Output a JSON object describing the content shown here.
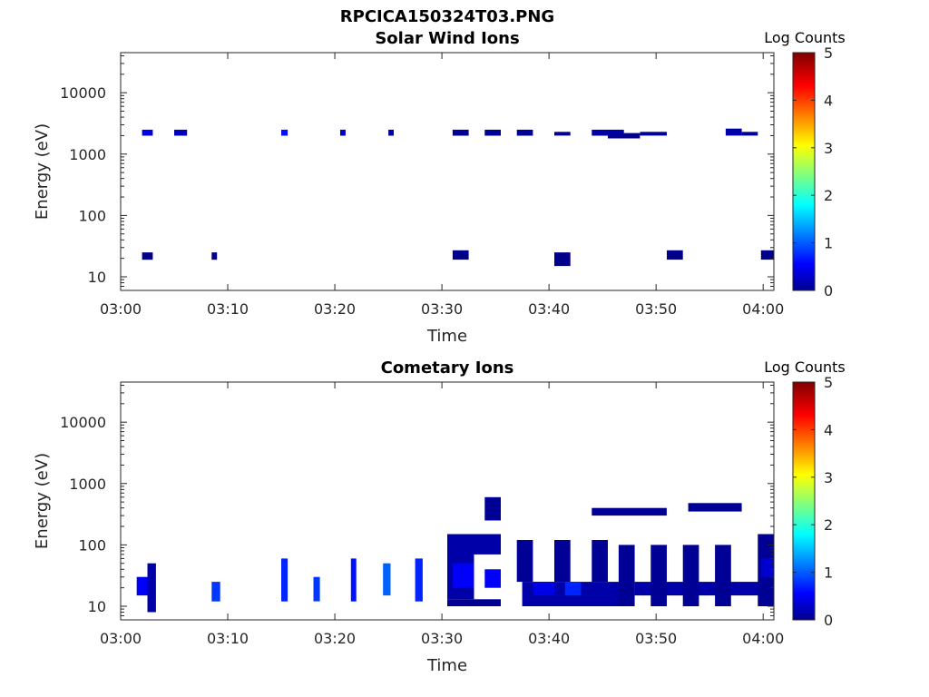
{
  "figure_title": "RPCICA150324T03.PNG",
  "chart_data": [
    {
      "type": "heatmap",
      "title": "Solar Wind Ions",
      "xlabel": "Time",
      "ylabel": "Energy (eV)",
      "xticks": [
        "03:00",
        "03:10",
        "03:20",
        "03:30",
        "03:40",
        "03:50",
        "04:00"
      ],
      "xlim": [
        "03:00",
        "04:01"
      ],
      "yscale": "log",
      "yticks": [
        10,
        100,
        1000,
        10000
      ],
      "ylim": [
        6,
        45000
      ],
      "colorbar": {
        "label": "Log Counts",
        "ticks": [
          0,
          1,
          2,
          3,
          4,
          5
        ],
        "range": [
          0,
          5
        ],
        "colormap": "jet"
      },
      "cells": [
        {
          "t": [
            2.0,
            3.0
          ],
          "e": [
            2000,
            2500
          ],
          "v": 0.5
        },
        {
          "t": [
            2.0,
            3.0
          ],
          "e": [
            19,
            25
          ],
          "v": 0.05
        },
        {
          "t": [
            5.0,
            6.2
          ],
          "e": [
            2000,
            2500
          ],
          "v": 0.3
        },
        {
          "t": [
            8.5,
            9.0
          ],
          "e": [
            19,
            25
          ],
          "v": 0.05
        },
        {
          "t": [
            15.0,
            15.6
          ],
          "e": [
            2000,
            2500
          ],
          "v": 0.7
        },
        {
          "t": [
            20.5,
            21.0
          ],
          "e": [
            2000,
            2500
          ],
          "v": 0.3
        },
        {
          "t": [
            25.0,
            25.5
          ],
          "e": [
            2000,
            2500
          ],
          "v": 0.2
        },
        {
          "t": [
            31.0,
            32.5
          ],
          "e": [
            2000,
            2500
          ],
          "v": 0.1
        },
        {
          "t": [
            31.0,
            32.5
          ],
          "e": [
            19,
            27
          ],
          "v": 0.05
        },
        {
          "t": [
            34.0,
            35.5
          ],
          "e": [
            2000,
            2500
          ],
          "v": 0.1
        },
        {
          "t": [
            37.0,
            38.5
          ],
          "e": [
            2000,
            2500
          ],
          "v": 0.1
        },
        {
          "t": [
            40.5,
            42.0
          ],
          "e": [
            2000,
            2300
          ],
          "v": 0.1
        },
        {
          "t": [
            40.5,
            42.0
          ],
          "e": [
            15,
            25
          ],
          "v": 0.05
        },
        {
          "t": [
            44.0,
            47.0
          ],
          "e": [
            2000,
            2500
          ],
          "v": 0.2
        },
        {
          "t": [
            45.5,
            48.5
          ],
          "e": [
            1800,
            2200
          ],
          "v": 0.1
        },
        {
          "t": [
            48.5,
            51.0
          ],
          "e": [
            2000,
            2300
          ],
          "v": 0.1
        },
        {
          "t": [
            51.0,
            52.5
          ],
          "e": [
            19,
            27
          ],
          "v": 0.05
        },
        {
          "t": [
            56.5,
            58.0
          ],
          "e": [
            2000,
            2600
          ],
          "v": 0.2
        },
        {
          "t": [
            58.0,
            59.5
          ],
          "e": [
            2000,
            2300
          ],
          "v": 0.1
        },
        {
          "t": [
            59.8,
            61.0
          ],
          "e": [
            19,
            27
          ],
          "v": 0.05
        }
      ]
    },
    {
      "type": "heatmap",
      "title": "Cometary Ions",
      "xlabel": "Time",
      "ylabel": "Energy (eV)",
      "xticks": [
        "03:00",
        "03:10",
        "03:20",
        "03:30",
        "03:40",
        "03:50",
        "04:00"
      ],
      "xlim": [
        "03:00",
        "04:01"
      ],
      "yscale": "log",
      "yticks": [
        10,
        100,
        1000,
        10000
      ],
      "ylim": [
        6,
        45000
      ],
      "colorbar": {
        "label": "Log Counts",
        "ticks": [
          0,
          1,
          2,
          3,
          4,
          5
        ],
        "range": [
          0,
          5
        ],
        "colormap": "jet"
      },
      "cells": [
        {
          "t": [
            1.5,
            2.5
          ],
          "e": [
            15,
            30
          ],
          "v": 0.6
        },
        {
          "t": [
            2.5,
            3.3
          ],
          "e": [
            8,
            50
          ],
          "v": 0.2
        },
        {
          "t": [
            8.5,
            9.3
          ],
          "e": [
            12,
            25
          ],
          "v": 0.9
        },
        {
          "t": [
            15.0,
            15.6
          ],
          "e": [
            12,
            60
          ],
          "v": 0.8
        },
        {
          "t": [
            18.0,
            18.6
          ],
          "e": [
            12,
            30
          ],
          "v": 0.9
        },
        {
          "t": [
            21.5,
            22.0
          ],
          "e": [
            12,
            60
          ],
          "v": 0.7
        },
        {
          "t": [
            24.5,
            25.2
          ],
          "e": [
            15,
            50
          ],
          "v": 1.1
        },
        {
          "t": [
            27.5,
            28.2
          ],
          "e": [
            12,
            60
          ],
          "v": 0.8
        },
        {
          "t": [
            30.5,
            35.5
          ],
          "e": [
            10,
            13
          ],
          "v": 0.1
        },
        {
          "t": [
            30.5,
            33.0
          ],
          "e": [
            13,
            100
          ],
          "v": 0.2
        },
        {
          "t": [
            31.0,
            33.0
          ],
          "e": [
            20,
            50
          ],
          "v": 0.6
        },
        {
          "t": [
            30.5,
            35.5
          ],
          "e": [
            70,
            150
          ],
          "v": 0.2
        },
        {
          "t": [
            34.0,
            35.5
          ],
          "e": [
            20,
            40
          ],
          "v": 0.6
        },
        {
          "t": [
            34.0,
            35.5
          ],
          "e": [
            250,
            600
          ],
          "v": 0.1
        },
        {
          "t": [
            37.5,
            47.0
          ],
          "e": [
            10,
            25
          ],
          "v": 0.2
        },
        {
          "t": [
            37.0,
            38.5
          ],
          "e": [
            25,
            120
          ],
          "v": 0.1
        },
        {
          "t": [
            40.5,
            42.0
          ],
          "e": [
            25,
            120
          ],
          "v": 0.1
        },
        {
          "t": [
            38.5,
            40.5
          ],
          "e": [
            15,
            25
          ],
          "v": 0.5
        },
        {
          "t": [
            41.5,
            43.0
          ],
          "e": [
            15,
            25
          ],
          "v": 0.8
        },
        {
          "t": [
            44.0,
            45.5
          ],
          "e": [
            25,
            120
          ],
          "v": 0.1
        },
        {
          "t": [
            46.5,
            48.0
          ],
          "e": [
            10,
            100
          ],
          "v": 0.1
        },
        {
          "t": [
            48.0,
            61.0
          ],
          "e": [
            15,
            25
          ],
          "v": 0.2
        },
        {
          "t": [
            49.5,
            51.0
          ],
          "e": [
            10,
            100
          ],
          "v": 0.1
        },
        {
          "t": [
            52.5,
            54.0
          ],
          "e": [
            10,
            100
          ],
          "v": 0.1
        },
        {
          "t": [
            55.5,
            57.0
          ],
          "e": [
            10,
            100
          ],
          "v": 0.1
        },
        {
          "t": [
            59.5,
            61.0
          ],
          "e": [
            10,
            150
          ],
          "v": 0.1
        },
        {
          "t": [
            59.8,
            61.0
          ],
          "e": [
            30,
            60
          ],
          "v": 0.4
        },
        {
          "t": [
            44.0,
            51.0
          ],
          "e": [
            300,
            400
          ],
          "v": 0.1
        },
        {
          "t": [
            53.0,
            58.0
          ],
          "e": [
            350,
            480
          ],
          "v": 0.1
        }
      ]
    }
  ]
}
